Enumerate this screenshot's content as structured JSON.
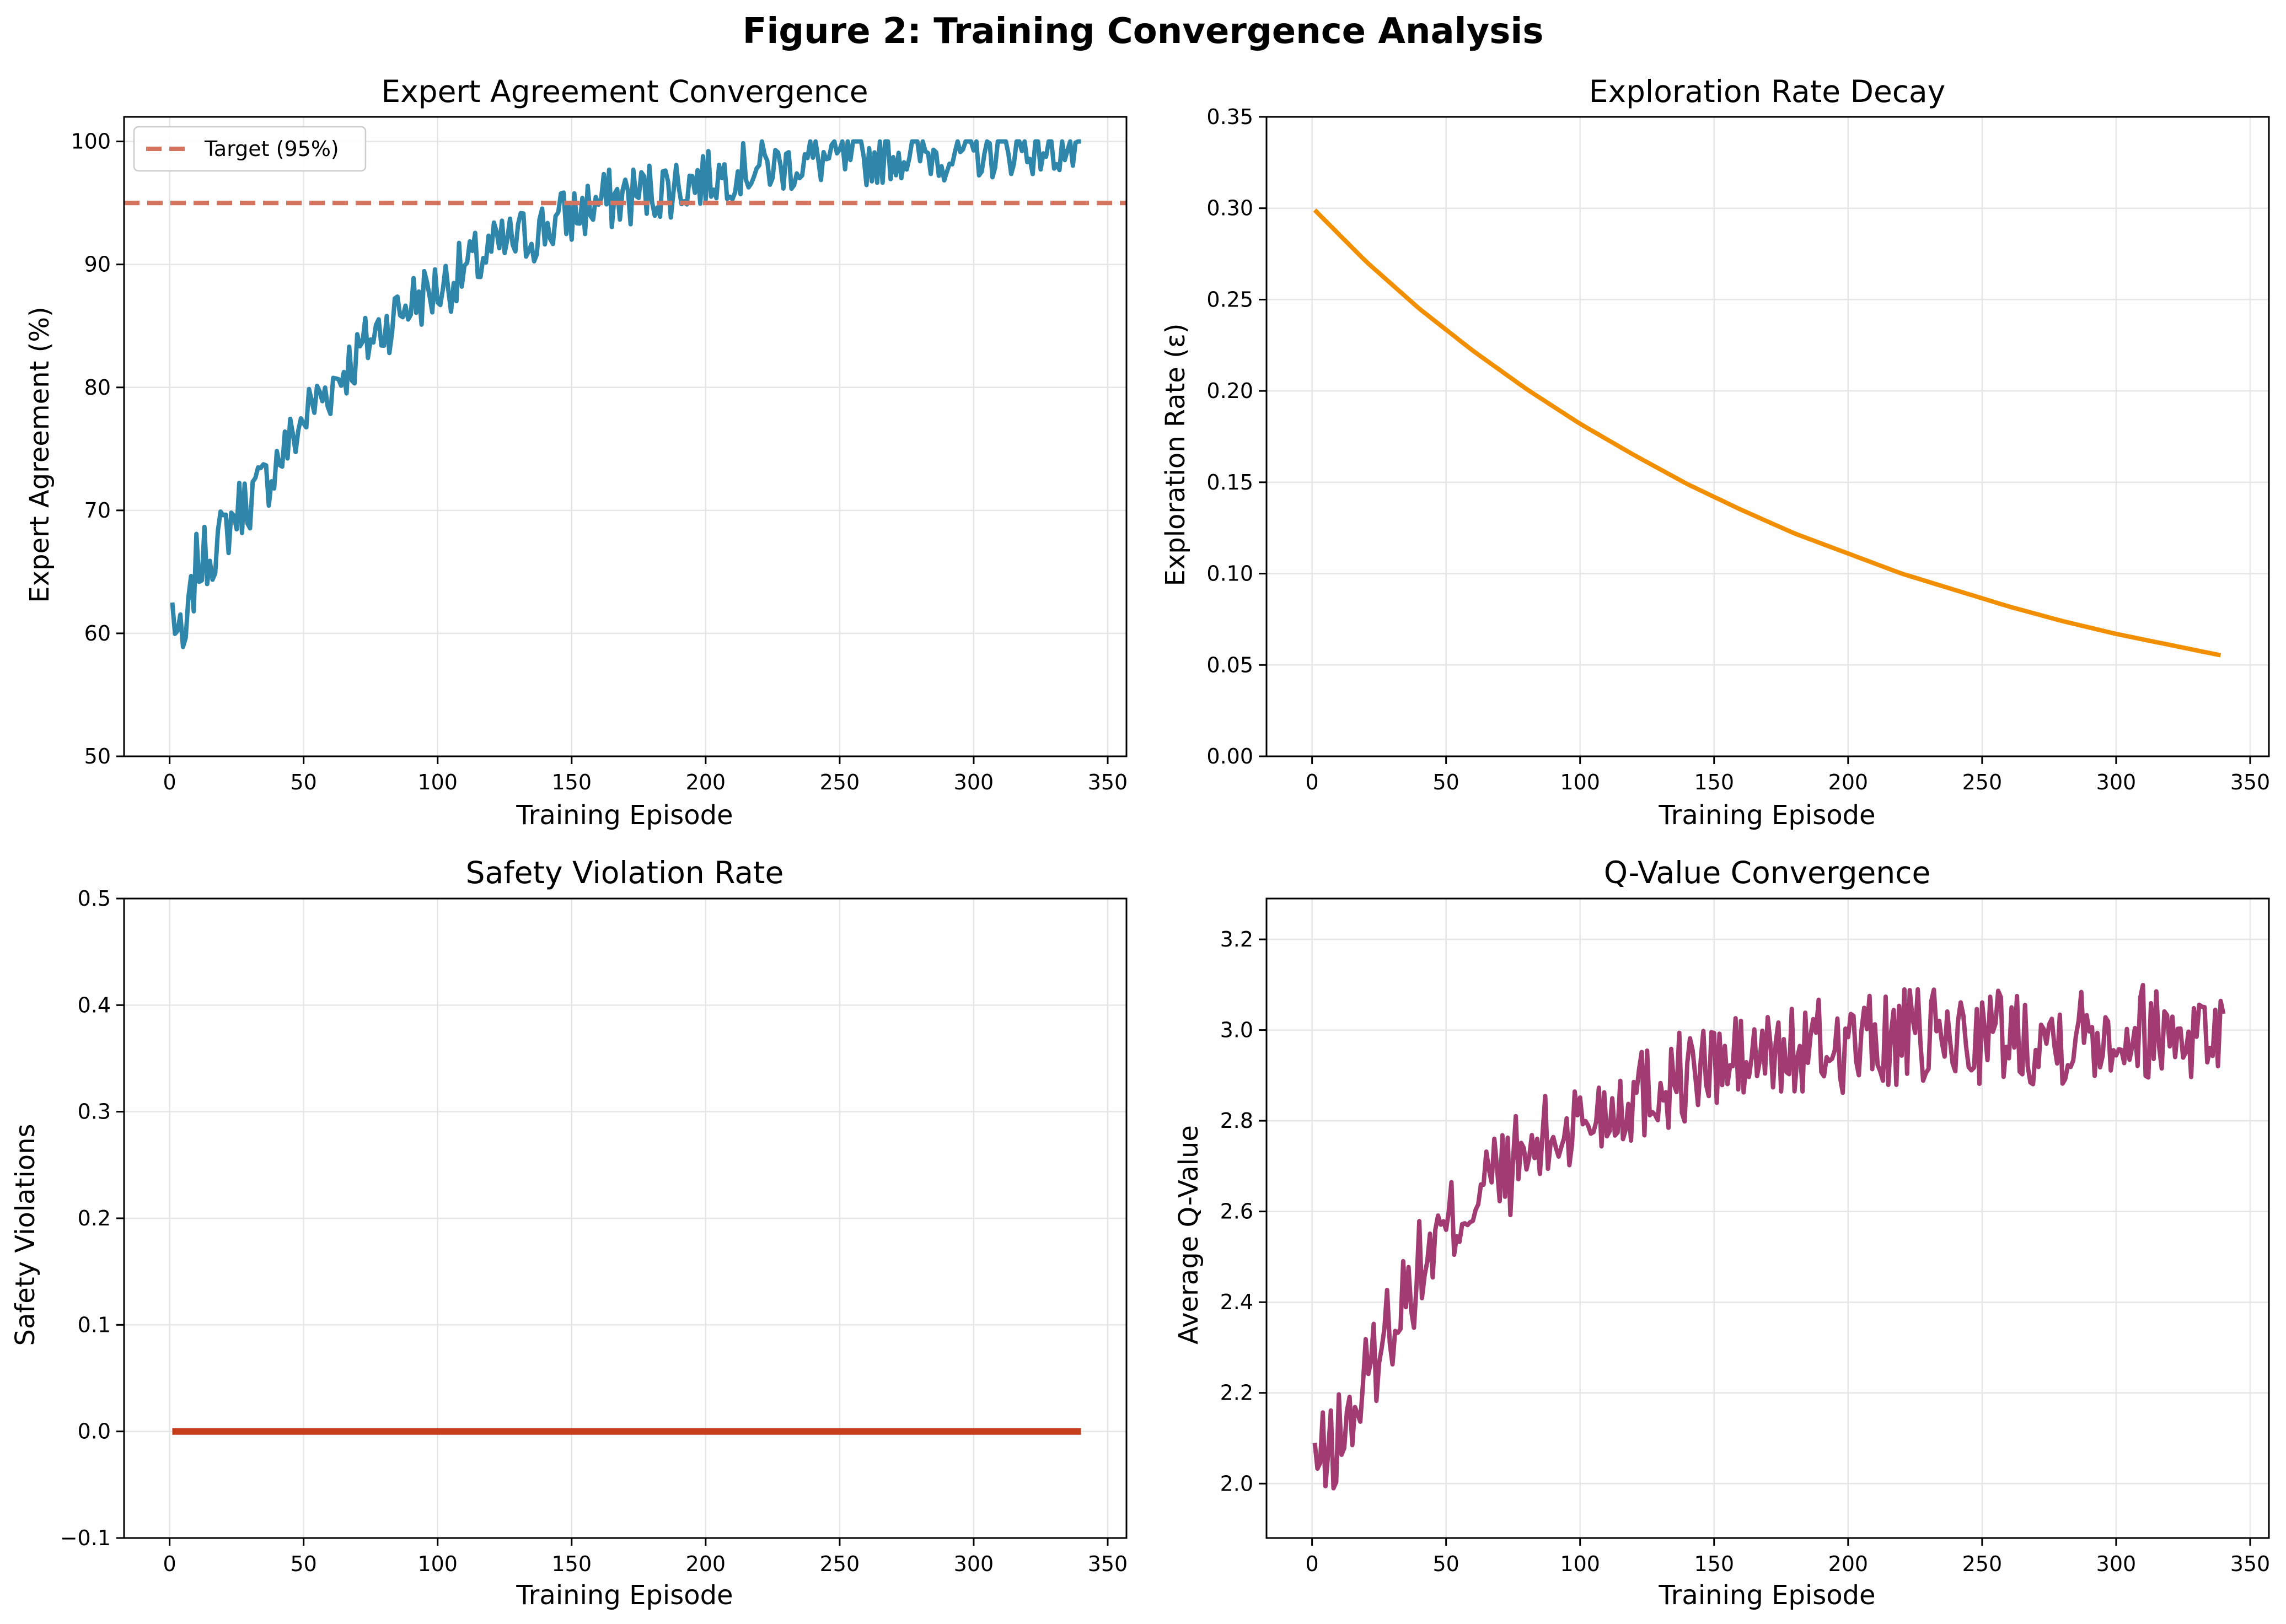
{
  "figure_title": "Figure 2: Training Convergence Analysis",
  "chart_data": [
    {
      "id": "expert",
      "type": "line",
      "title": "Expert Agreement Convergence",
      "xlabel": "Training Episode",
      "ylabel": "Expert Agreement (%)",
      "xlim": [
        -17,
        357
      ],
      "ylim": [
        50,
        102
      ],
      "xticks": [
        0,
        50,
        100,
        150,
        200,
        250,
        300,
        350
      ],
      "yticks": [
        50,
        60,
        70,
        80,
        90,
        100
      ],
      "grid": true,
      "legend": {
        "position": "top-left",
        "entries": [
          "Target (95%)"
        ]
      },
      "series": [
        {
          "color": "#2e86ab",
          "x": [
            1,
            5,
            10,
            15,
            20,
            25,
            30,
            35,
            40,
            45,
            50,
            55,
            60,
            65,
            70,
            75,
            80,
            85,
            90,
            95,
            100,
            110,
            120,
            130,
            140,
            150,
            160,
            170,
            180,
            190,
            200,
            210,
            220,
            230,
            240,
            250,
            260,
            270,
            280,
            290,
            300,
            310,
            320,
            330,
            340
          ],
          "y": [
            62,
            58,
            65.5,
            66.5,
            68,
            70,
            71,
            72,
            74,
            75.5,
            77.5,
            79,
            80,
            81.5,
            82.5,
            84,
            85,
            86,
            87,
            87.5,
            88,
            89.5,
            91,
            92,
            93,
            94,
            95,
            95.5,
            96,
            96.5,
            97,
            97.5,
            98,
            98,
            98.5,
            98.5,
            98.5,
            99,
            99,
            99,
            99,
            99.3,
            99.5,
            99.5,
            99
          ]
        },
        {
          "name": "Target (95%)",
          "color": "#d4735e",
          "style": "dashed",
          "x": [
            -17,
            357
          ],
          "y": [
            95,
            95
          ]
        }
      ]
    },
    {
      "id": "explore",
      "type": "line",
      "title": "Exploration Rate Decay",
      "xlabel": "Training Episode",
      "ylabel": "Exploration Rate (ε)",
      "xlim": [
        -17,
        357
      ],
      "ylim": [
        0.0,
        0.35
      ],
      "xticks": [
        0,
        50,
        100,
        150,
        200,
        250,
        300,
        350
      ],
      "yticks": [
        "0.00",
        "0.05",
        "0.10",
        "0.15",
        "0.20",
        "0.25",
        "0.30",
        "0.35"
      ],
      "grid": true,
      "series": [
        {
          "color": "#f18f01",
          "x": [
            1,
            20,
            40,
            60,
            80,
            100,
            120,
            140,
            160,
            180,
            200,
            220,
            240,
            260,
            280,
            300,
            320,
            340
          ],
          "y": [
            0.299,
            0.271,
            0.245,
            0.222,
            0.201,
            0.182,
            0.165,
            0.149,
            0.135,
            0.122,
            0.111,
            0.1,
            0.091,
            0.082,
            0.074,
            0.067,
            0.061,
            0.055
          ]
        }
      ]
    },
    {
      "id": "safety",
      "type": "line",
      "title": "Safety Violation Rate",
      "xlabel": "Training Episode",
      "ylabel": "Safety Violations",
      "xlim": [
        -17,
        357
      ],
      "ylim": [
        -0.1,
        0.5
      ],
      "xticks": [
        0,
        50,
        100,
        150,
        200,
        250,
        300,
        350
      ],
      "yticks": [
        "−0.1",
        "0.0",
        "0.1",
        "0.2",
        "0.3",
        "0.4",
        "0.5"
      ],
      "grid": true,
      "series": [
        {
          "color": "#c73e1d",
          "x": [
            1,
            340
          ],
          "y": [
            0,
            0
          ]
        }
      ]
    },
    {
      "id": "qvalue",
      "type": "line",
      "title": "Q-Value Convergence",
      "xlabel": "Training Episode",
      "ylabel": "Average Q-Value",
      "xlim": [
        -17,
        357
      ],
      "ylim": [
        1.88,
        3.29
      ],
      "xticks": [
        0,
        50,
        100,
        150,
        200,
        250,
        300,
        350
      ],
      "yticks": [
        "2.0",
        "2.2",
        "2.4",
        "2.6",
        "2.8",
        "3.0",
        "3.2"
      ],
      "grid": true,
      "series": [
        {
          "color": "#a23b72",
          "x": [
            1,
            5,
            10,
            15,
            20,
            25,
            30,
            35,
            40,
            45,
            50,
            55,
            60,
            65,
            70,
            75,
            80,
            85,
            90,
            95,
            100,
            110,
            120,
            130,
            140,
            150,
            160,
            170,
            180,
            190,
            200,
            210,
            220,
            230,
            240,
            250,
            260,
            270,
            280,
            290,
            300,
            310,
            320,
            330,
            340
          ],
          "y": [
            2.05,
            2.05,
            2.1,
            2.15,
            2.22,
            2.3,
            2.37,
            2.42,
            2.47,
            2.52,
            2.55,
            2.6,
            2.63,
            2.66,
            2.68,
            2.7,
            2.72,
            2.74,
            2.76,
            2.78,
            2.8,
            2.83,
            2.86,
            2.88,
            2.9,
            2.92,
            2.93,
            2.94,
            2.95,
            2.96,
            2.97,
            2.97,
            2.98,
            2.98,
            2.98,
            2.99,
            2.99,
            2.99,
            2.99,
            3.0,
            3.0,
            3.0,
            3.0,
            3.0,
            3.0
          ]
        }
      ]
    }
  ]
}
